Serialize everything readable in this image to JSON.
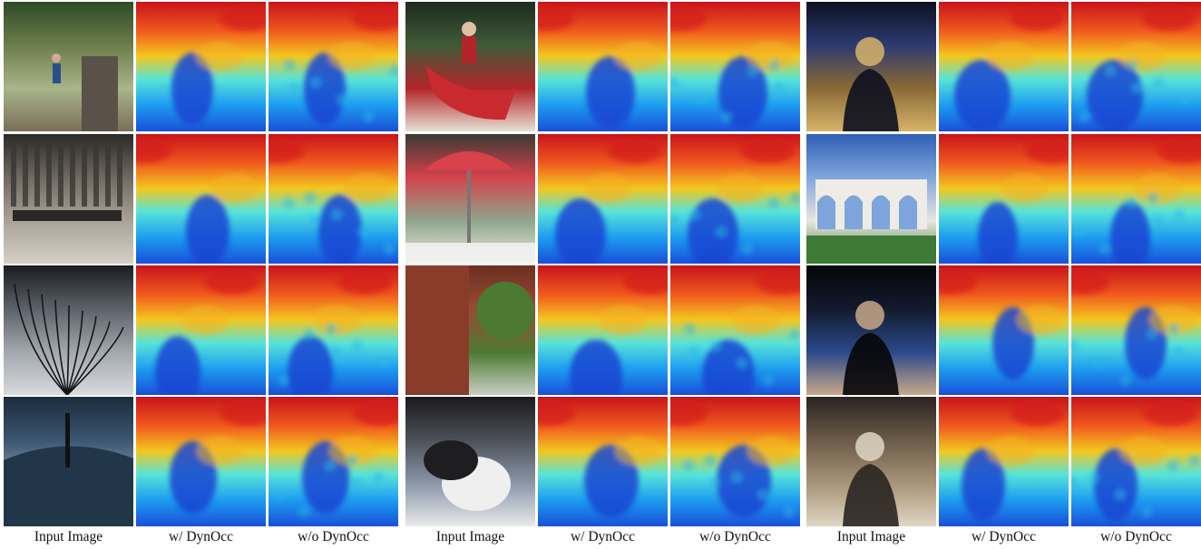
{
  "figure": {
    "groups": [
      {
        "captions": [
          "Input Image",
          "w/ DynOcc",
          "w/o DynOcc"
        ],
        "rows": [
          {
            "scene": "park-runner",
            "tones": [
              "#2e4a28",
              "#6b7d4a",
              "#a9b48a",
              "#7a6e5a"
            ]
          },
          {
            "scene": "wooden-bench",
            "tones": [
              "#2c2a27",
              "#6e6860",
              "#a8a298",
              "#d6d0c4"
            ]
          },
          {
            "scene": "bare-tree-sky",
            "tones": [
              "#1a1c20",
              "#5b6168",
              "#a3a8ae",
              "#d7dade"
            ]
          },
          {
            "scene": "car-antenna",
            "tones": [
              "#1d2c3c",
              "#3a5570",
              "#8fa2b0",
              "#d8d5cc"
            ]
          }
        ]
      },
      {
        "captions": [
          "Input Image",
          "w/ DynOcc",
          "w/o DynOcc"
        ],
        "rows": [
          {
            "scene": "red-canoe",
            "tones": [
              "#1d2a1e",
              "#3e5a38",
              "#b3262b",
              "#e6e1d5"
            ]
          },
          {
            "scene": "patio-umbrella",
            "tones": [
              "#3a3a34",
              "#d4424b",
              "#8fa58c",
              "#ece8e0"
            ]
          },
          {
            "scene": "brick-building",
            "tones": [
              "#6b2f22",
              "#9a4a34",
              "#4c7a32",
              "#c9cfc4"
            ]
          },
          {
            "scene": "sleeping-cat",
            "tones": [
              "#1b1b1d",
              "#4d5058",
              "#8a97a8",
              "#e9e9ea"
            ]
          }
        ]
      },
      {
        "captions": [
          "Input Image",
          "w/ DynOcc",
          "w/o DynOcc"
        ],
        "rows": [
          {
            "scene": "buddha-statue",
            "tones": [
              "#0c1020",
              "#2c3a70",
              "#8a6a34",
              "#d7b46a"
            ]
          },
          {
            "scene": "white-arch-gate",
            "tones": [
              "#2f5fb4",
              "#7ea4dc",
              "#e8e6e0",
              "#3c7a36"
            ]
          },
          {
            "scene": "speaker-dark-stage",
            "tones": [
              "#050607",
              "#121a2c",
              "#2b4a8a",
              "#c8a88a"
            ]
          },
          {
            "scene": "conference-speaker",
            "tones": [
              "#2a2420",
              "#6a5a48",
              "#a89478",
              "#dfd6c4"
            ]
          }
        ]
      }
    ]
  }
}
